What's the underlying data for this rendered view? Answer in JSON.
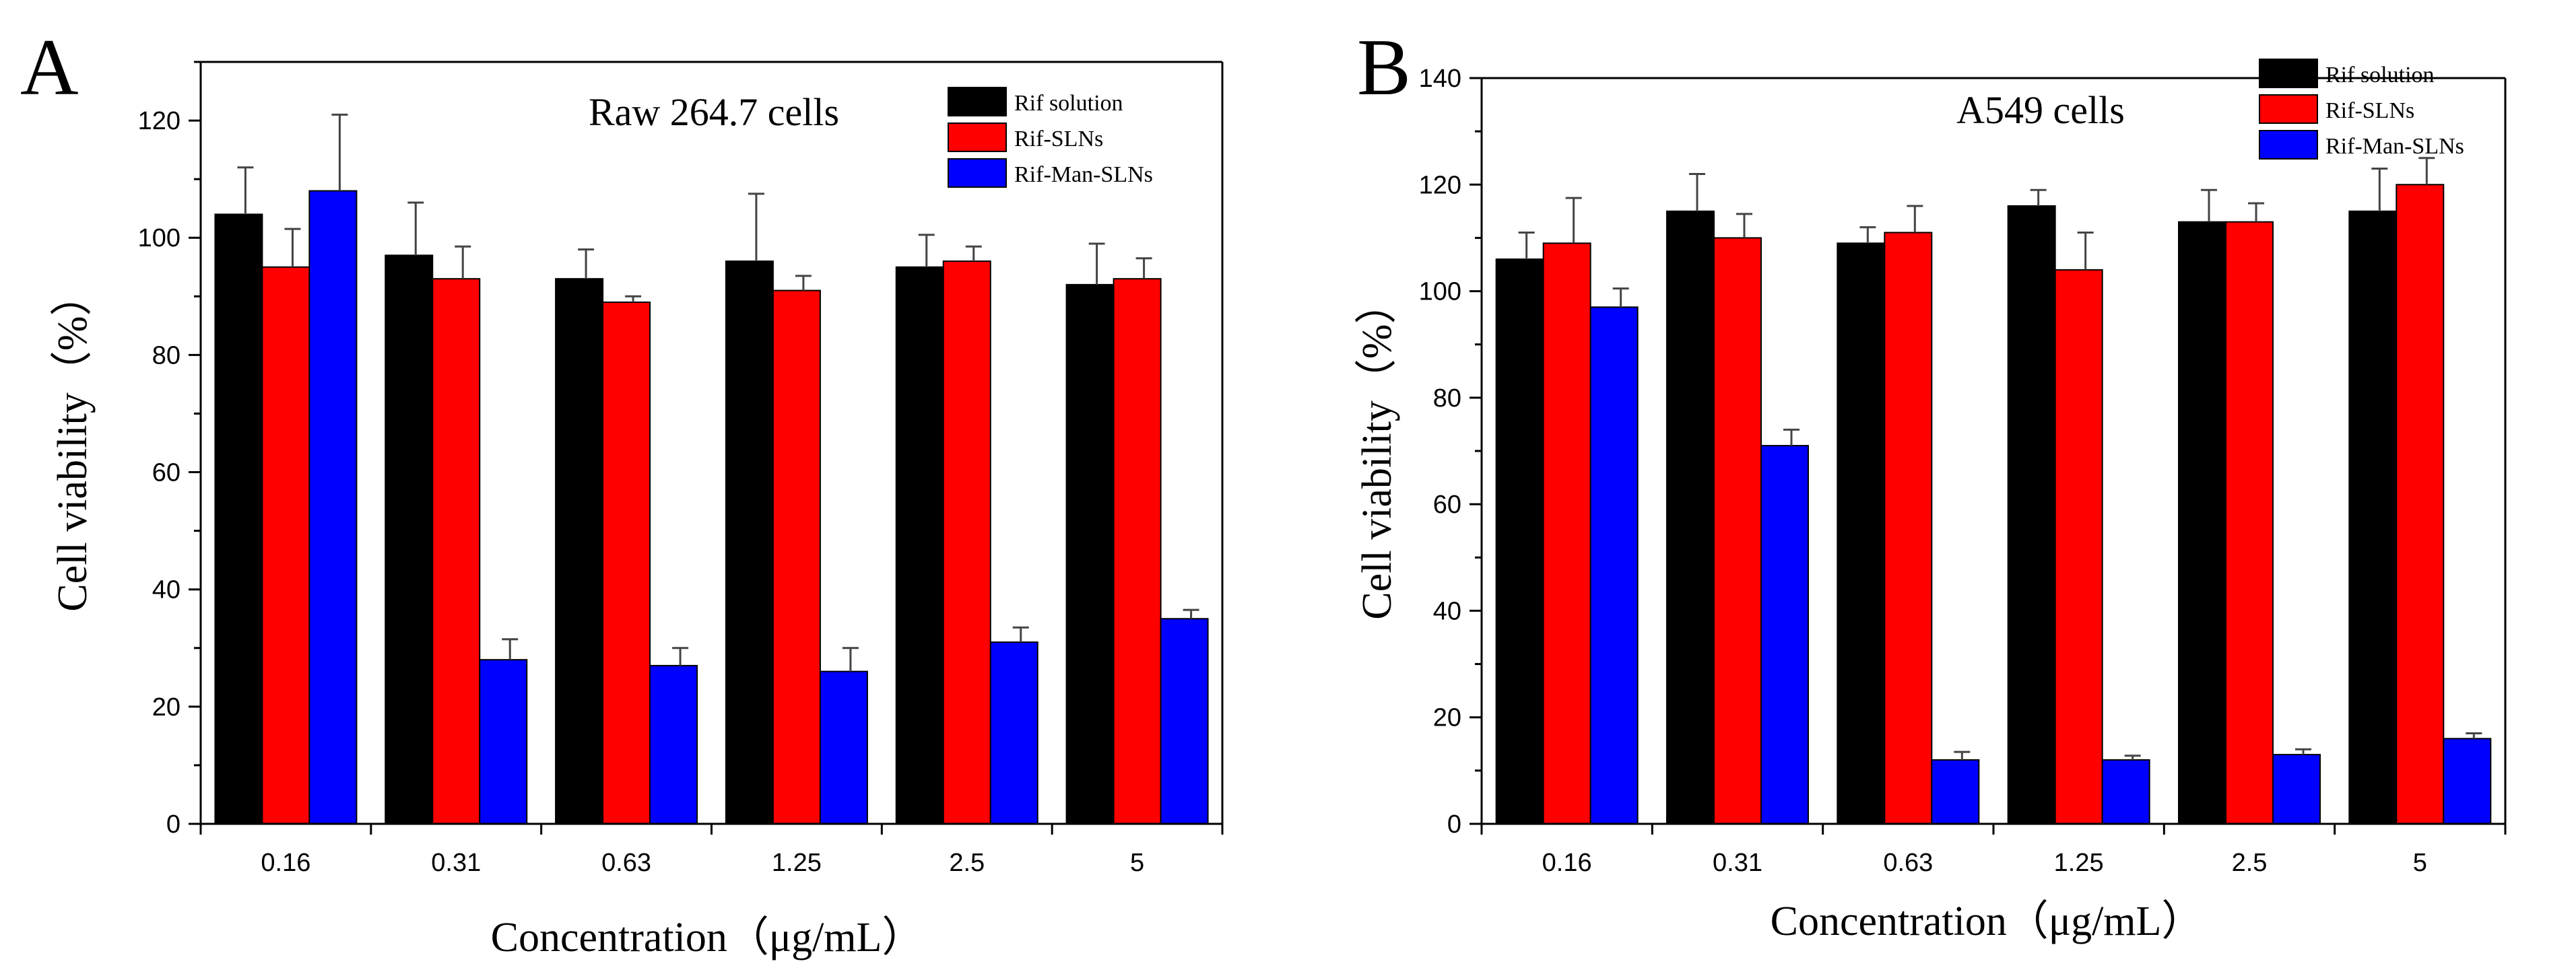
{
  "chart_data": [
    {
      "panel_label": "A",
      "type": "bar",
      "title": "Raw 264.7 cells",
      "xlabel": "Concentration（μg/mL）",
      "ylabel": "Cell viability（%）",
      "categories": [
        "0.16",
        "0.31",
        "0.63",
        "1.25",
        "2.5",
        "5"
      ],
      "ylim": [
        0,
        130
      ],
      "yticks": [
        0,
        20,
        40,
        60,
        80,
        100,
        120
      ],
      "legend_position": "top-right",
      "series": [
        {
          "name": "Rif solution",
          "color": "#000000",
          "values": [
            104,
            97,
            93,
            96,
            95,
            92
          ],
          "errors": [
            8,
            9,
            5,
            11.5,
            5.5,
            7
          ]
        },
        {
          "name": "Rif-SLNs",
          "color": "#ff0000",
          "values": [
            95,
            93,
            89,
            91,
            96,
            93
          ],
          "errors": [
            6.5,
            5.5,
            1,
            2.5,
            2.5,
            3.5
          ]
        },
        {
          "name": "Rif-Man-SLNs",
          "color": "#0000ff",
          "values": [
            108,
            28,
            27,
            26,
            31,
            35
          ],
          "errors": [
            13,
            3.5,
            3,
            4,
            2.5,
            1.5
          ]
        }
      ]
    },
    {
      "panel_label": "B",
      "type": "bar",
      "title": "A549 cells",
      "xlabel": "Concentration（μg/mL）",
      "ylabel": "Cell viability（%）",
      "categories": [
        "0.16",
        "0.31",
        "0.63",
        "1.25",
        "2.5",
        "5"
      ],
      "ylim": [
        0,
        140
      ],
      "yticks": [
        0,
        20,
        40,
        60,
        80,
        100,
        120,
        140
      ],
      "legend_position": "top-right",
      "series": [
        {
          "name": "Rif solution",
          "color": "#000000",
          "values": [
            106,
            115,
            109,
            116,
            113,
            115
          ],
          "errors": [
            5,
            7,
            3,
            3,
            6,
            8
          ]
        },
        {
          "name": "Rif-SLNs",
          "color": "#ff0000",
          "values": [
            109,
            110,
            111,
            104,
            113,
            120
          ],
          "errors": [
            8.5,
            4.5,
            5,
            7,
            3.5,
            5
          ]
        },
        {
          "name": "Rif-Man-SLNs",
          "color": "#0000ff",
          "values": [
            97,
            71,
            12,
            12,
            13,
            16
          ],
          "errors": [
            3.5,
            3,
            1.5,
            0.8,
            1,
            1
          ]
        }
      ]
    }
  ]
}
